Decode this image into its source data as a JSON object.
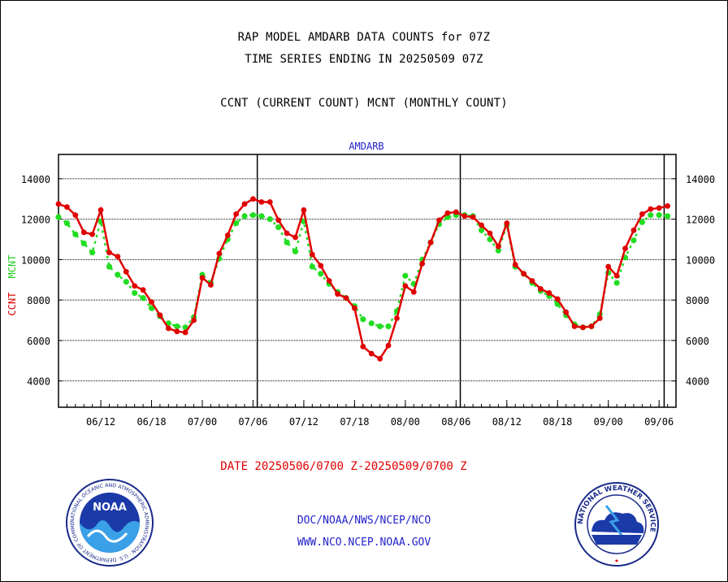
{
  "titles": {
    "line1": "RAP MODEL AMDARB DATA COUNTS for 07Z",
    "line2": "TIME SERIES ENDING IN 20250509 07Z",
    "line3": "CCNT (CURRENT COUNT) MCNT (MONTHLY COUNT)"
  },
  "date_range": "DATE 20250506/0700 Z-20250509/0700 Z",
  "footer": {
    "link1": "DOC/NOAA/NWS/NCEP/NCO",
    "link2": "WWW.NCO.NCEP.NOAA.GOV"
  },
  "logos": {
    "noaa_text": "NOAA",
    "noaa_ring": "NATIONAL OCEANIC AND ATMOSPHERIC ADMINISTRATION · U.S. DEPARTMENT OF COMMERCE",
    "nws_ring": "NATIONAL WEATHER SERVICE"
  },
  "colors": {
    "ccnt": "#e00000",
    "mcnt": "#22dd22",
    "label": "#2222cc"
  },
  "chart_data": {
    "type": "line",
    "title": "AMDARB",
    "ylabel_left": [
      "CCNT",
      "MCNT"
    ],
    "ylim": [
      2700,
      15200
    ],
    "xlim": [
      0,
      73
    ],
    "yticks": [
      4000,
      6000,
      8000,
      10000,
      12000,
      14000
    ],
    "xticks": [
      {
        "x": 5,
        "label": "06/12"
      },
      {
        "x": 11,
        "label": "06/18"
      },
      {
        "x": 17,
        "label": "07/00"
      },
      {
        "x": 23,
        "label": "07/06"
      },
      {
        "x": 29,
        "label": "07/12"
      },
      {
        "x": 35,
        "label": "07/18"
      },
      {
        "x": 41,
        "label": "08/00"
      },
      {
        "x": 47,
        "label": "08/06"
      },
      {
        "x": 53,
        "label": "08/12"
      },
      {
        "x": 59,
        "label": "08/18"
      },
      {
        "x": 65,
        "label": "09/00"
      },
      {
        "x": 71,
        "label": "09/06"
      }
    ],
    "day_boundaries": [
      23.5,
      47.5,
      71.6
    ],
    "grid": true,
    "series": [
      {
        "name": "CCNT",
        "values": [
          12750,
          12600,
          12200,
          11350,
          11250,
          12450,
          10350,
          10150,
          9400,
          8700,
          8500,
          7900,
          7250,
          6600,
          6450,
          6400,
          7000,
          9100,
          8750,
          10300,
          11200,
          12250,
          12750,
          13000,
          12850,
          12850,
          11950,
          11300,
          11100,
          12450,
          10250,
          9700,
          8950,
          8300,
          8100,
          7600,
          5700,
          5350,
          5100,
          5750,
          7100,
          8700,
          8400,
          9800,
          10850,
          11950,
          12300,
          12350,
          12150,
          12100,
          11700,
          11300,
          10650,
          11800,
          9750,
          9300,
          8950,
          8550,
          8350,
          8050,
          7400,
          6700,
          6650,
          6700,
          7100,
          9650,
          9200,
          10550,
          11450,
          12250,
          12500,
          12550,
          12650
        ]
      },
      {
        "name": "MCNT",
        "values": [
          12100,
          11800,
          11250,
          10800,
          10350,
          11900,
          9650,
          9250,
          8900,
          8350,
          8100,
          7600,
          7200,
          6850,
          6700,
          6650,
          7150,
          9250,
          8850,
          10050,
          11000,
          11800,
          12150,
          12200,
          12150,
          12000,
          11600,
          10850,
          10400,
          11900,
          9650,
          9300,
          8800,
          8400,
          8100,
          7700,
          7050,
          6850,
          6700,
          6700,
          7450,
          9200,
          8800,
          10000,
          10850,
          11750,
          12100,
          12200,
          12200,
          12150,
          11450,
          11000,
          10450,
          11700,
          9650,
          9300,
          8850,
          8450,
          8200,
          7800,
          7250,
          6800,
          6650,
          6700,
          7300,
          9350,
          8850,
          10100,
          10950,
          11850,
          12200,
          12200,
          12150
        ]
      }
    ]
  }
}
